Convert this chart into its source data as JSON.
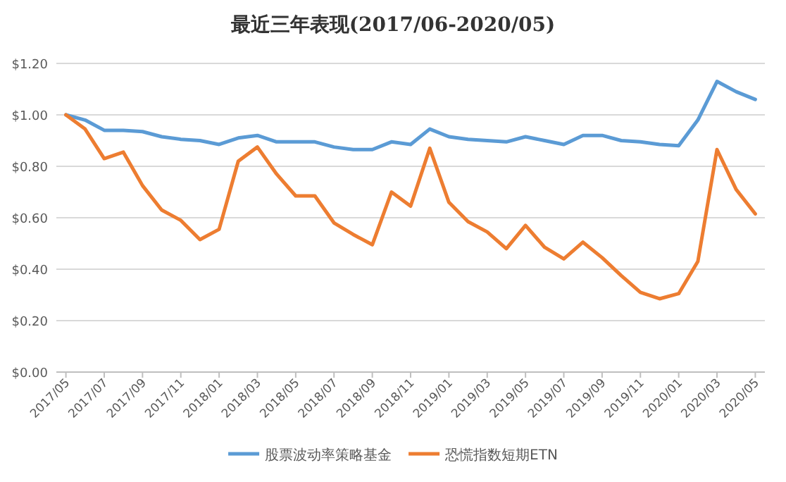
{
  "chart_data": {
    "type": "line",
    "title": "最近三年表现(2017/06-2020/05)",
    "categories": [
      "2017/05",
      null,
      "2017/07",
      null,
      "2017/09",
      null,
      "2017/11",
      null,
      "2018/01",
      null,
      "2018/03",
      null,
      "2018/05",
      null,
      "2018/07",
      null,
      "2018/09",
      null,
      "2018/11",
      null,
      "2019/01",
      null,
      "2019/03",
      null,
      "2019/05",
      null,
      "2019/07",
      null,
      "2019/09",
      null,
      "2019/11",
      null,
      "2020/01",
      null,
      "2020/03",
      null,
      "2020/05"
    ],
    "series": [
      {
        "name": "股票波动率策略基金",
        "color": "#5b9bd5",
        "values": [
          1.0,
          0.98,
          0.94,
          0.94,
          0.935,
          0.915,
          0.905,
          0.9,
          0.885,
          0.91,
          0.92,
          0.895,
          0.895,
          0.895,
          0.875,
          0.865,
          0.865,
          0.895,
          0.885,
          0.945,
          0.915,
          0.905,
          0.9,
          0.895,
          0.915,
          0.9,
          0.885,
          0.92,
          0.92,
          0.9,
          0.895,
          0.885,
          0.88,
          0.98,
          1.13,
          1.09,
          1.06
        ]
      },
      {
        "name": "恐慌指数短期ETN",
        "color": "#ed7d31",
        "values": [
          1.0,
          0.945,
          0.83,
          0.855,
          0.725,
          0.63,
          0.59,
          0.515,
          0.555,
          0.82,
          0.875,
          0.77,
          0.685,
          0.685,
          0.58,
          0.535,
          0.495,
          0.7,
          0.645,
          0.87,
          0.66,
          0.585,
          0.545,
          0.48,
          0.57,
          0.485,
          0.44,
          0.505,
          0.445,
          0.375,
          0.31,
          0.285,
          0.305,
          0.43,
          0.865,
          0.71,
          0.615
        ]
      }
    ],
    "ylim": [
      0,
      1.2
    ],
    "yticks": [
      {
        "value": 0,
        "label": "$0.00"
      },
      {
        "value": 0.2,
        "label": "$0.20"
      },
      {
        "value": 0.4,
        "label": "$0.40"
      },
      {
        "value": 0.6,
        "label": "$0.60"
      },
      {
        "value": 0.8,
        "label": "$0.80"
      },
      {
        "value": 1.0,
        "label": "$1.00"
      },
      {
        "value": 1.2,
        "label": "$1.20"
      }
    ],
    "grid": "y",
    "legend": "bottom",
    "marker": "none"
  }
}
